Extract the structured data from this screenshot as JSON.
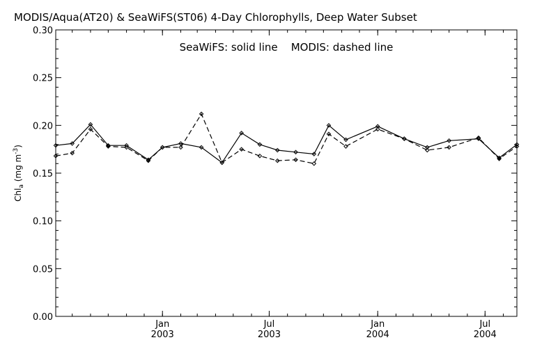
{
  "chart_data": {
    "type": "line",
    "title": "MODIS/Aqua(AT20) & SeaWiFS(ST06) 4-Day Chlorophylls, Deep Water Subset",
    "legend_text": "SeaWiFS: solid line    MODIS: dashed line",
    "ylabel": "Chl",
    "ylabel_sub": "a",
    "ylabel_units_open": " (mg m",
    "ylabel_units_sup": "-3",
    "ylabel_units_close": ")",
    "ylim": [
      0.0,
      0.3
    ],
    "yticks": [
      "0.00",
      "0.05",
      "0.10",
      "0.15",
      "0.20",
      "0.25",
      "0.30"
    ],
    "xlim": [
      "2002-07-04",
      "2004-08-24"
    ],
    "xticks": [
      {
        "date": "2003-01-01",
        "month": "Jan",
        "year": "2003"
      },
      {
        "date": "2003-07-01",
        "month": "Jul",
        "year": "2003"
      },
      {
        "date": "2004-01-01",
        "month": "Jan",
        "year": "2004"
      },
      {
        "date": "2004-07-01",
        "month": "Jul",
        "year": "2004"
      }
    ],
    "grid": false,
    "series": [
      {
        "name": "SeaWiFS",
        "style": "solid",
        "color": "#000000",
        "points": [
          {
            "x": "2002-07-04",
            "y": 0.179
          },
          {
            "x": "2002-08-01",
            "y": 0.181
          },
          {
            "x": "2002-09-01",
            "y": 0.201
          },
          {
            "x": "2002-10-01",
            "y": 0.179
          },
          {
            "x": "2002-11-01",
            "y": 0.179
          },
          {
            "x": "2002-12-08",
            "y": 0.164
          },
          {
            "x": "2003-01-01",
            "y": 0.177
          },
          {
            "x": "2003-02-01",
            "y": 0.181
          },
          {
            "x": "2003-03-08",
            "y": 0.177
          },
          {
            "x": "2003-04-12",
            "y": 0.161
          },
          {
            "x": "2003-05-15",
            "y": 0.192
          },
          {
            "x": "2003-06-15",
            "y": 0.18
          },
          {
            "x": "2003-07-15",
            "y": 0.174
          },
          {
            "x": "2003-08-15",
            "y": 0.172
          },
          {
            "x": "2003-09-15",
            "y": 0.17
          },
          {
            "x": "2003-10-10",
            "y": 0.2
          },
          {
            "x": "2003-11-08",
            "y": 0.185
          },
          {
            "x": "2004-01-01",
            "y": 0.199
          },
          {
            "x": "2004-02-15",
            "y": 0.186
          },
          {
            "x": "2004-03-25",
            "y": 0.177
          },
          {
            "x": "2004-05-01",
            "y": 0.184
          },
          {
            "x": "2004-06-20",
            "y": 0.186
          },
          {
            "x": "2004-07-25",
            "y": 0.166
          },
          {
            "x": "2004-08-24",
            "y": 0.18
          }
        ]
      },
      {
        "name": "MODIS",
        "style": "dashed",
        "color": "#000000",
        "points": [
          {
            "x": "2002-07-04",
            "y": 0.168
          },
          {
            "x": "2002-08-01",
            "y": 0.171
          },
          {
            "x": "2002-09-01",
            "y": 0.196
          },
          {
            "x": "2002-10-01",
            "y": 0.178
          },
          {
            "x": "2002-11-01",
            "y": 0.177
          },
          {
            "x": "2002-12-08",
            "y": 0.163
          },
          {
            "x": "2003-01-01",
            "y": 0.177
          },
          {
            "x": "2003-02-01",
            "y": 0.177
          },
          {
            "x": "2003-03-08",
            "y": 0.212
          },
          {
            "x": "2003-04-12",
            "y": 0.161
          },
          {
            "x": "2003-05-15",
            "y": 0.175
          },
          {
            "x": "2003-06-15",
            "y": 0.168
          },
          {
            "x": "2003-07-15",
            "y": 0.163
          },
          {
            "x": "2003-08-15",
            "y": 0.164
          },
          {
            "x": "2003-09-15",
            "y": 0.16
          },
          {
            "x": "2003-10-10",
            "y": 0.191
          },
          {
            "x": "2003-11-08",
            "y": 0.178
          },
          {
            "x": "2004-01-01",
            "y": 0.196
          },
          {
            "x": "2004-02-15",
            "y": 0.186
          },
          {
            "x": "2004-03-25",
            "y": 0.174
          },
          {
            "x": "2004-05-01",
            "y": 0.177
          },
          {
            "x": "2004-06-20",
            "y": 0.187
          },
          {
            "x": "2004-07-25",
            "y": 0.165
          },
          {
            "x": "2004-08-24",
            "y": 0.178
          }
        ]
      }
    ]
  }
}
